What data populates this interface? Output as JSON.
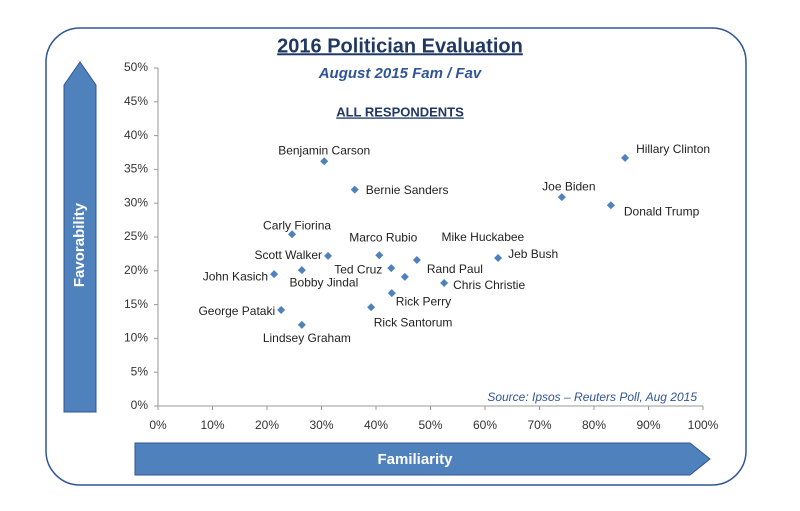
{
  "chart_data": {
    "type": "scatter",
    "title": "2016 Politician Evaluation",
    "subtitle": "August 2015 Fam / Fav",
    "annotation": "ALL RESPONDENTS",
    "source": "Source: Ipsos – Reuters Poll, Aug 2015",
    "xlabel": "Familiarity",
    "ylabel": "Favorability",
    "color": "#4f81bd",
    "labels": [
      "Hillary Clinton",
      "Benjamin Carson",
      "Bernie Sanders",
      "Joe Biden",
      "Donald Trump",
      "Carly Fiorina",
      "Marco Rubio",
      "Mike Huckabee",
      "Jeb Bush",
      "Scott Walker",
      "Ted Cruz",
      "Rand Paul",
      "Chris Christie",
      "John Kasich",
      "Bobby Jindal",
      "Rick Perry",
      "George Pataki",
      "Rick Santorum",
      "Lindsey Graham"
    ],
    "x": [
      85.7,
      30.5,
      36.1,
      74.1,
      83.1,
      24.6,
      40.6,
      47.5,
      62.4,
      31.2,
      42.8,
      45.3,
      52.5,
      21.3,
      26.4,
      42.9,
      22.6,
      39.1,
      26.4
    ],
    "values": [
      36.7,
      36.2,
      32.0,
      30.9,
      29.7,
      25.4,
      22.3,
      21.6,
      21.9,
      22.2,
      20.4,
      19.1,
      18.2,
      19.5,
      20.1,
      16.7,
      14.2,
      14.6,
      12.0
    ],
    "xlim": [
      0,
      100
    ],
    "ylim": [
      0,
      50
    ],
    "xticks": [
      {
        "value": 0,
        "label": "0%"
      },
      {
        "value": 10,
        "label": "10%"
      },
      {
        "value": 20,
        "label": "20%"
      },
      {
        "value": 30,
        "label": "30%"
      },
      {
        "value": 40,
        "label": "40%"
      },
      {
        "value": 50,
        "label": "50%"
      },
      {
        "value": 60,
        "label": "60%"
      },
      {
        "value": 70,
        "label": "70%"
      },
      {
        "value": 80,
        "label": "80%"
      },
      {
        "value": 90,
        "label": "90%"
      },
      {
        "value": 100,
        "label": "100%"
      }
    ],
    "yticks": [
      {
        "value": 0,
        "label": "0%"
      },
      {
        "value": 5,
        "label": "5%"
      },
      {
        "value": 10,
        "label": "10%"
      },
      {
        "value": 15,
        "label": "15%"
      },
      {
        "value": 20,
        "label": "20%"
      },
      {
        "value": 25,
        "label": "25%"
      },
      {
        "value": 30,
        "label": "30%"
      },
      {
        "value": 35,
        "label": "35%"
      },
      {
        "value": 40,
        "label": "40%"
      },
      {
        "value": 45,
        "label": "45%"
      },
      {
        "value": 50,
        "label": "50%"
      }
    ]
  }
}
